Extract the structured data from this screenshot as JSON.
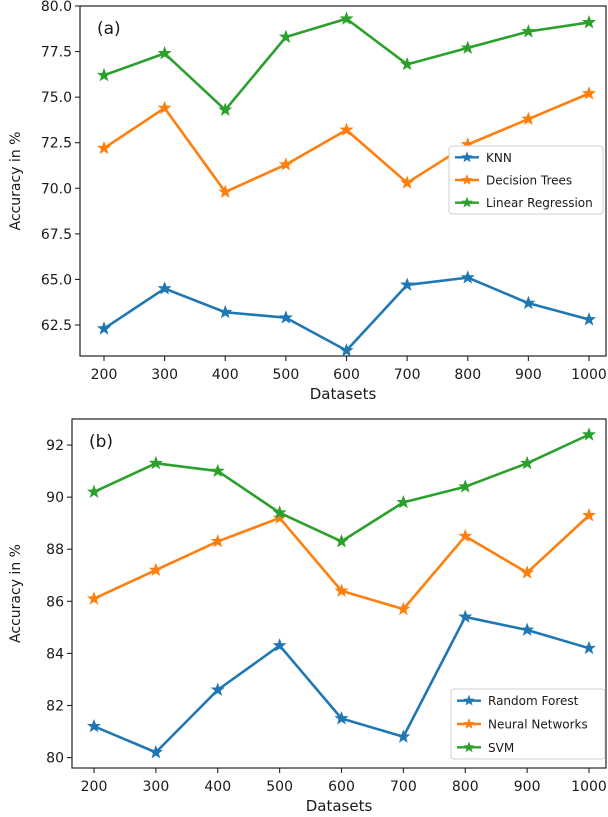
{
  "chart_data": [
    {
      "type": "line",
      "panel_label": "(a)",
      "xlabel": "Datasets",
      "ylabel": "Accuracy in %",
      "x": [
        200,
        300,
        400,
        500,
        600,
        700,
        800,
        900,
        1000
      ],
      "ylim": [
        60.8,
        80.0
      ],
      "yticks": [
        62.5,
        65.0,
        67.5,
        70.0,
        72.5,
        75.0,
        77.5,
        80.0
      ],
      "ytick_labels": [
        "62.5",
        "65.0",
        "67.5",
        "70.0",
        "72.5",
        "75.0",
        "77.5",
        "80.0"
      ],
      "grid": false,
      "legend_position": "center-right",
      "series": [
        {
          "name": "KNN",
          "color": "#1f77b4",
          "marker": "star",
          "values": [
            62.3,
            64.5,
            63.2,
            62.9,
            61.1,
            64.7,
            65.1,
            63.7,
            62.8
          ]
        },
        {
          "name": "Decision Trees",
          "color": "#ff7f0e",
          "marker": "star",
          "values": [
            72.2,
            74.4,
            69.8,
            71.3,
            73.2,
            70.3,
            72.4,
            73.8,
            75.2
          ]
        },
        {
          "name": "Linear Regression",
          "color": "#2ca02c",
          "marker": "star",
          "values": [
            76.2,
            77.4,
            74.3,
            78.3,
            79.3,
            76.8,
            77.7,
            78.6,
            79.1
          ]
        }
      ]
    },
    {
      "type": "line",
      "panel_label": "(b)",
      "xlabel": "Datasets",
      "ylabel": "Accuracy in %",
      "x": [
        200,
        300,
        400,
        500,
        600,
        700,
        800,
        900,
        1000
      ],
      "ylim": [
        79.6,
        93.0
      ],
      "yticks": [
        80,
        82,
        84,
        86,
        88,
        90,
        92
      ],
      "ytick_labels": [
        "80",
        "82",
        "84",
        "86",
        "88",
        "90",
        "92"
      ],
      "grid": false,
      "legend_position": "bottom-right",
      "series": [
        {
          "name": "Random Forest",
          "color": "#1f77b4",
          "marker": "star",
          "values": [
            81.2,
            80.2,
            82.6,
            84.3,
            81.5,
            80.8,
            85.4,
            84.9,
            84.2
          ]
        },
        {
          "name": "Neural Networks",
          "color": "#ff7f0e",
          "marker": "star",
          "values": [
            86.1,
            87.2,
            88.3,
            89.2,
            86.4,
            85.7,
            88.5,
            87.1,
            89.3
          ]
        },
        {
          "name": "SVM",
          "color": "#2ca02c",
          "marker": "star",
          "values": [
            90.2,
            91.3,
            91.0,
            89.4,
            88.3,
            89.8,
            90.4,
            91.3,
            92.4
          ]
        }
      ]
    }
  ]
}
